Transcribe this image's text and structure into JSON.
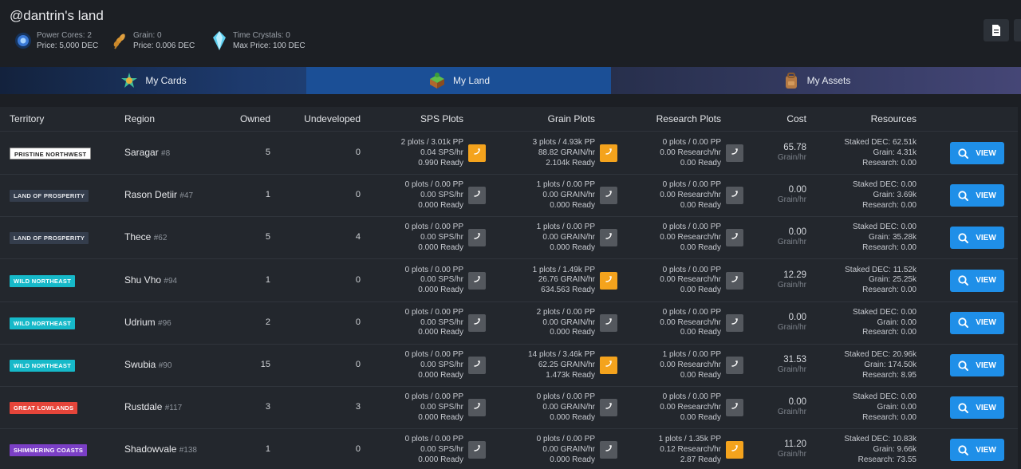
{
  "header": {
    "title": "@dantrin's land",
    "stats": [
      {
        "icon": "power-core-icon",
        "line1": "Power Cores: 2",
        "line2": "Price: 5,000 DEC"
      },
      {
        "icon": "grain-icon",
        "line1": "Grain: 0",
        "line2": "Price: 0.006 DEC"
      },
      {
        "icon": "time-crystal-icon",
        "line1": "Time Crystals: 0",
        "line2": "Max Price: 100 DEC"
      }
    ]
  },
  "tabs": [
    {
      "label": "My Cards",
      "icon": "cards-icon"
    },
    {
      "label": "My Land",
      "icon": "land-icon"
    },
    {
      "label": "My Assets",
      "icon": "backpack-icon"
    }
  ],
  "columns": {
    "territory": "Territory",
    "region": "Region",
    "owned": "Owned",
    "undeveloped": "Undeveloped",
    "sps": "SPS Plots",
    "grain": "Grain Plots",
    "research": "Research Plots",
    "cost": "Cost",
    "resources": "Resources"
  },
  "view_label": "VIEW",
  "colors": {
    "accent": "#1f8fe8",
    "claim_active": "#f4a31d",
    "claim_inactive": "#54585e"
  },
  "rows": [
    {
      "territory": "PRISTINE NORTHWEST",
      "badge_bg": "#ffffff",
      "badge_fg": "#222222",
      "region": "Saragar",
      "region_num": "#8",
      "owned": "5",
      "undeveloped": "0",
      "sps": [
        "2 plots / 3.01k PP",
        "0.04 SPS/hr",
        "0.990 Ready"
      ],
      "sps_on": true,
      "grain": [
        "3 plots / 4.93k PP",
        "88.82 GRAIN/hr",
        "2.104k Ready"
      ],
      "grain_on": true,
      "research": [
        "0 plots / 0.00 PP",
        "0.00 Research/hr",
        "0.00 Ready"
      ],
      "research_on": false,
      "cost": "65.78",
      "cost_unit": "Grain/hr",
      "resources": [
        "Staked DEC: 62.51k",
        "Grain: 4.31k",
        "Research: 0.00"
      ]
    },
    {
      "territory": "LAND OF PROSPERITY",
      "badge_bg": "#343d4c",
      "badge_fg": "#e8eaee",
      "region": "Rason Detiir",
      "region_num": "#47",
      "owned": "1",
      "undeveloped": "0",
      "sps": [
        "0 plots / 0.00 PP",
        "0.00 SPS/hr",
        "0.000 Ready"
      ],
      "sps_on": false,
      "grain": [
        "1 plots / 0.00 PP",
        "0.00 GRAIN/hr",
        "0.000 Ready"
      ],
      "grain_on": false,
      "research": [
        "0 plots / 0.00 PP",
        "0.00 Research/hr",
        "0.00 Ready"
      ],
      "research_on": false,
      "cost": "0.00",
      "cost_unit": "Grain/hr",
      "resources": [
        "Staked DEC: 0.00",
        "Grain: 3.69k",
        "Research: 0.00"
      ]
    },
    {
      "territory": "LAND OF PROSPERITY",
      "badge_bg": "#343d4c",
      "badge_fg": "#e8eaee",
      "region": "Thece",
      "region_num": "#62",
      "owned": "5",
      "undeveloped": "4",
      "sps": [
        "0 plots / 0.00 PP",
        "0.00 SPS/hr",
        "0.000 Ready"
      ],
      "sps_on": false,
      "grain": [
        "1 plots / 0.00 PP",
        "0.00 GRAIN/hr",
        "0.000 Ready"
      ],
      "grain_on": false,
      "research": [
        "0 plots / 0.00 PP",
        "0.00 Research/hr",
        "0.00 Ready"
      ],
      "research_on": false,
      "cost": "0.00",
      "cost_unit": "Grain/hr",
      "resources": [
        "Staked DEC: 0.00",
        "Grain: 35.28k",
        "Research: 0.00"
      ]
    },
    {
      "territory": "WILD NORTHEAST",
      "badge_bg": "#16b9c9",
      "badge_fg": "#ffffff",
      "region": "Shu Vho",
      "region_num": "#94",
      "owned": "1",
      "undeveloped": "0",
      "sps": [
        "0 plots / 0.00 PP",
        "0.00 SPS/hr",
        "0.000 Ready"
      ],
      "sps_on": false,
      "grain": [
        "1 plots / 1.49k PP",
        "26.76 GRAIN/hr",
        "634.563 Ready"
      ],
      "grain_on": true,
      "research": [
        "0 plots / 0.00 PP",
        "0.00 Research/hr",
        "0.00 Ready"
      ],
      "research_on": false,
      "cost": "12.29",
      "cost_unit": "Grain/hr",
      "resources": [
        "Staked DEC: 11.52k",
        "Grain: 25.25k",
        "Research: 0.00"
      ]
    },
    {
      "territory": "WILD NORTHEAST",
      "badge_bg": "#16b9c9",
      "badge_fg": "#ffffff",
      "region": "Udrium",
      "region_num": "#96",
      "owned": "2",
      "undeveloped": "0",
      "sps": [
        "0 plots / 0.00 PP",
        "0.00 SPS/hr",
        "0.000 Ready"
      ],
      "sps_on": false,
      "grain": [
        "2 plots / 0.00 PP",
        "0.00 GRAIN/hr",
        "0.000 Ready"
      ],
      "grain_on": false,
      "research": [
        "0 plots / 0.00 PP",
        "0.00 Research/hr",
        "0.00 Ready"
      ],
      "research_on": false,
      "cost": "0.00",
      "cost_unit": "Grain/hr",
      "resources": [
        "Staked DEC: 0.00",
        "Grain: 0.00",
        "Research: 0.00"
      ]
    },
    {
      "territory": "WILD NORTHEAST",
      "badge_bg": "#16b9c9",
      "badge_fg": "#ffffff",
      "region": "Swubia",
      "region_num": "#90",
      "owned": "15",
      "undeveloped": "0",
      "sps": [
        "0 plots / 0.00 PP",
        "0.00 SPS/hr",
        "0.000 Ready"
      ],
      "sps_on": false,
      "grain": [
        "14 plots / 3.46k PP",
        "62.25 GRAIN/hr",
        "1.473k Ready"
      ],
      "grain_on": true,
      "research": [
        "1 plots / 0.00 PP",
        "0.00 Research/hr",
        "0.00 Ready"
      ],
      "research_on": false,
      "cost": "31.53",
      "cost_unit": "Grain/hr",
      "resources": [
        "Staked DEC: 20.96k",
        "Grain: 174.50k",
        "Research: 8.95"
      ]
    },
    {
      "territory": "GREAT LOWLANDS",
      "badge_bg": "#e5453a",
      "badge_fg": "#ffffff",
      "region": "Rustdale",
      "region_num": "#117",
      "owned": "3",
      "undeveloped": "3",
      "sps": [
        "0 plots / 0.00 PP",
        "0.00 SPS/hr",
        "0.000 Ready"
      ],
      "sps_on": false,
      "grain": [
        "0 plots / 0.00 PP",
        "0.00 GRAIN/hr",
        "0.000 Ready"
      ],
      "grain_on": false,
      "research": [
        "0 plots / 0.00 PP",
        "0.00 Research/hr",
        "0.00 Ready"
      ],
      "research_on": false,
      "cost": "0.00",
      "cost_unit": "Grain/hr",
      "resources": [
        "Staked DEC: 0.00",
        "Grain: 0.00",
        "Research: 0.00"
      ]
    },
    {
      "territory": "SHIMMERING COASTS",
      "badge_bg": "#7b3fc6",
      "badge_fg": "#ffffff",
      "region": "Shadowvale",
      "region_num": "#138",
      "owned": "1",
      "undeveloped": "0",
      "sps": [
        "0 plots / 0.00 PP",
        "0.00 SPS/hr",
        "0.000 Ready"
      ],
      "sps_on": false,
      "grain": [
        "0 plots / 0.00 PP",
        "0.00 GRAIN/hr",
        "0.000 Ready"
      ],
      "grain_on": false,
      "research": [
        "1 plots / 1.35k PP",
        "0.12 Research/hr",
        "2.87 Ready"
      ],
      "research_on": true,
      "cost": "11.20",
      "cost_unit": "Grain/hr",
      "resources": [
        "Staked DEC: 10.83k",
        "Grain: 9.66k",
        "Research: 73.55"
      ]
    }
  ]
}
